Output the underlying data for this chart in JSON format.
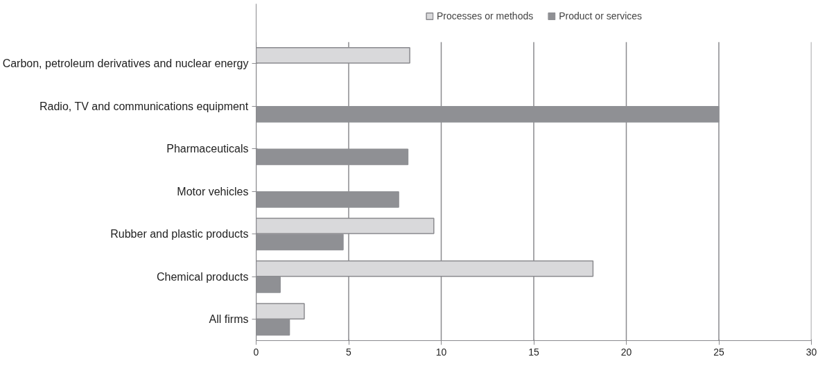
{
  "chart_data": {
    "type": "bar",
    "orientation": "horizontal",
    "categories": [
      "Carbon, petroleum derivatives and nuclear energy",
      "Radio, TV and communications equipment",
      "Pharmaceuticals",
      "Motor vehicles",
      "Rubber and plastic products",
      "Chemical products",
      "All firms"
    ],
    "series": [
      {
        "name": "Processes or methods",
        "color": "#d9d9db",
        "values": [
          8.3,
          null,
          null,
          null,
          9.6,
          18.2,
          2.6
        ]
      },
      {
        "name": "Product or services",
        "color": "#8f9094",
        "values": [
          null,
          25,
          8.2,
          7.7,
          4.7,
          1.3,
          1.8
        ]
      }
    ],
    "xlim": [
      0,
      30
    ],
    "xticks": [
      0,
      5,
      10,
      15,
      20,
      25,
      30
    ],
    "grid": "x",
    "legend": "top"
  }
}
